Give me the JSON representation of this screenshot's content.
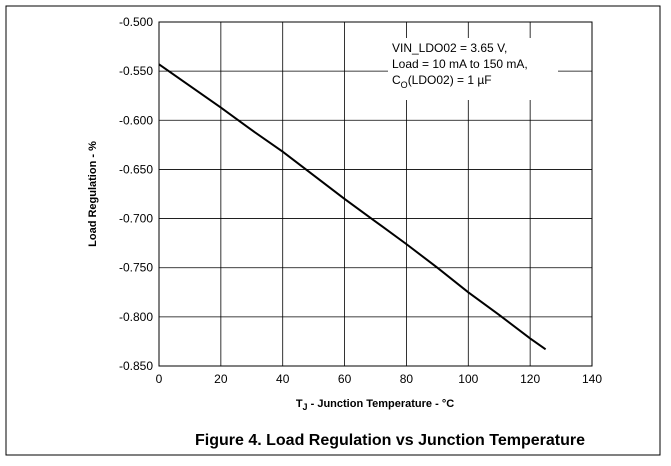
{
  "chart_data": {
    "type": "line",
    "title": "Figure 4. Load Regulation vs Junction Temperature",
    "y_label": "Load Regulation - %",
    "x_label": {
      "main": "T",
      "sub": "J",
      "rest": " - Junction Temperature - °C"
    },
    "annotation": {
      "lines": [
        "VIN_LDO02 = 3.65 V,",
        "Load = 10 mA to 150 mA,"
      ],
      "last": {
        "main": "C",
        "sub": "O",
        "rest": "(LDO02) = 1 µF"
      }
    },
    "x": [
      0,
      10,
      20,
      30,
      40,
      50,
      60,
      70,
      80,
      90,
      100,
      110,
      120,
      125
    ],
    "series": [
      {
        "color": "#000000",
        "values": [
          -0.543,
          -0.565,
          -0.587,
          -0.61,
          -0.632,
          -0.656,
          -0.68,
          -0.703,
          -0.726,
          -0.75,
          -0.775,
          -0.798,
          -0.822,
          -0.833
        ]
      }
    ],
    "xlim": [
      0,
      140
    ],
    "xticks": [
      0,
      20,
      40,
      60,
      80,
      100,
      120,
      140
    ],
    "ylim": [
      -0.85,
      -0.5
    ],
    "yticks": [
      {
        "value": -0.5,
        "label": "-0.500"
      },
      {
        "value": -0.55,
        "label": "-0.550"
      },
      {
        "value": -0.6,
        "label": "-0.600"
      },
      {
        "value": -0.65,
        "label": "-0.650"
      },
      {
        "value": -0.7,
        "label": "-0.700"
      },
      {
        "value": -0.75,
        "label": "-0.750"
      },
      {
        "value": -0.8,
        "label": "-0.800"
      },
      {
        "value": -0.85,
        "label": "-0.850"
      }
    ],
    "grid": true
  }
}
